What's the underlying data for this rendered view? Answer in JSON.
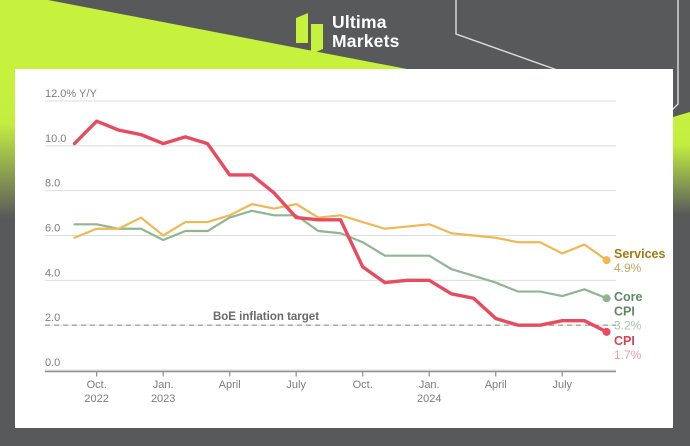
{
  "header": {
    "brand": {
      "name_line1": "Ultima",
      "name_line2": "Markets"
    },
    "colors": {
      "background_gray": "#58595B",
      "accent_lime": "#C6F23E",
      "logo_text": "#FFFFFF"
    }
  },
  "chart_data": {
    "type": "line",
    "title": "",
    "xlabel": "",
    "ylabel": "% Y/Y",
    "ylim": [
      0,
      12
    ],
    "grid": true,
    "legend_position": "right-end-labels",
    "x_months": [
      "Sep 2022",
      "Oct 2022",
      "Nov 2022",
      "Dec 2022",
      "Jan 2023",
      "Feb 2023",
      "Mar 2023",
      "Apr 2023",
      "May 2023",
      "Jun 2023",
      "Jul 2023",
      "Aug 2023",
      "Sep 2023",
      "Oct 2023",
      "Nov 2023",
      "Dec 2023",
      "Jan 2024",
      "Feb 2024",
      "Mar 2024",
      "Apr 2024",
      "May 2024",
      "Jun 2024",
      "Jul 2024",
      "Aug 2024",
      "Sep 2024"
    ],
    "y_ticks": [
      {
        "value": 0,
        "label": "0.0"
      },
      {
        "value": 2,
        "label": "2.0"
      },
      {
        "value": 4,
        "label": "4.0"
      },
      {
        "value": 6,
        "label": "6.0"
      },
      {
        "value": 8,
        "label": "8.0"
      },
      {
        "value": 10,
        "label": "10.0"
      },
      {
        "value": 12,
        "label": "12.0% Y/Y"
      }
    ],
    "x_ticks": [
      {
        "month_index": 1,
        "label": "Oct.",
        "year": "2022"
      },
      {
        "month_index": 4,
        "label": "Jan.",
        "year": "2023"
      },
      {
        "month_index": 7,
        "label": "April",
        "year": ""
      },
      {
        "month_index": 10,
        "label": "July",
        "year": ""
      },
      {
        "month_index": 13,
        "label": "Oct.",
        "year": ""
      },
      {
        "month_index": 16,
        "label": "Jan.",
        "year": "2024"
      },
      {
        "month_index": 19,
        "label": "April",
        "year": ""
      },
      {
        "month_index": 22,
        "label": "July",
        "year": ""
      }
    ],
    "reference_line": {
      "value": 2.0,
      "label": "BoE inflation target"
    },
    "series": [
      {
        "name": "Core CPI",
        "name_lines": [
          "Core",
          "CPI"
        ],
        "color": "#8FB691",
        "label_color": "#5F8B64",
        "value_color": "#A9C3A8",
        "end_value_label": "3.2%",
        "values": [
          6.5,
          6.5,
          6.3,
          6.3,
          5.8,
          6.2,
          6.2,
          6.8,
          7.1,
          6.9,
          6.9,
          6.2,
          6.1,
          5.7,
          5.1,
          5.1,
          5.1,
          4.5,
          4.2,
          3.9,
          3.5,
          3.5,
          3.3,
          3.6,
          3.2
        ]
      },
      {
        "name": "Services",
        "name_lines": [
          "Services"
        ],
        "color": "#F0B752",
        "label_color": "#A2790F",
        "value_color": "#C3A75E",
        "end_value_label": "4.9%",
        "values": [
          5.9,
          6.3,
          6.3,
          6.8,
          6.0,
          6.6,
          6.6,
          6.9,
          7.4,
          7.2,
          7.4,
          6.8,
          6.9,
          6.6,
          6.3,
          6.4,
          6.5,
          6.1,
          6.0,
          5.9,
          5.7,
          5.7,
          5.2,
          5.6,
          4.9
        ]
      },
      {
        "name": "CPI",
        "name_lines": [
          "CPI"
        ],
        "color": "#E84A5E",
        "label_color": "#D64256",
        "value_color": "#F09AA4",
        "end_value_label": "1.7%",
        "values": [
          10.1,
          11.1,
          10.7,
          10.5,
          10.1,
          10.4,
          10.1,
          8.7,
          8.7,
          7.9,
          6.8,
          6.7,
          6.7,
          4.6,
          3.9,
          4.0,
          4.0,
          3.4,
          3.2,
          2.3,
          2.0,
          2.0,
          2.2,
          2.2,
          1.7
        ]
      }
    ]
  }
}
